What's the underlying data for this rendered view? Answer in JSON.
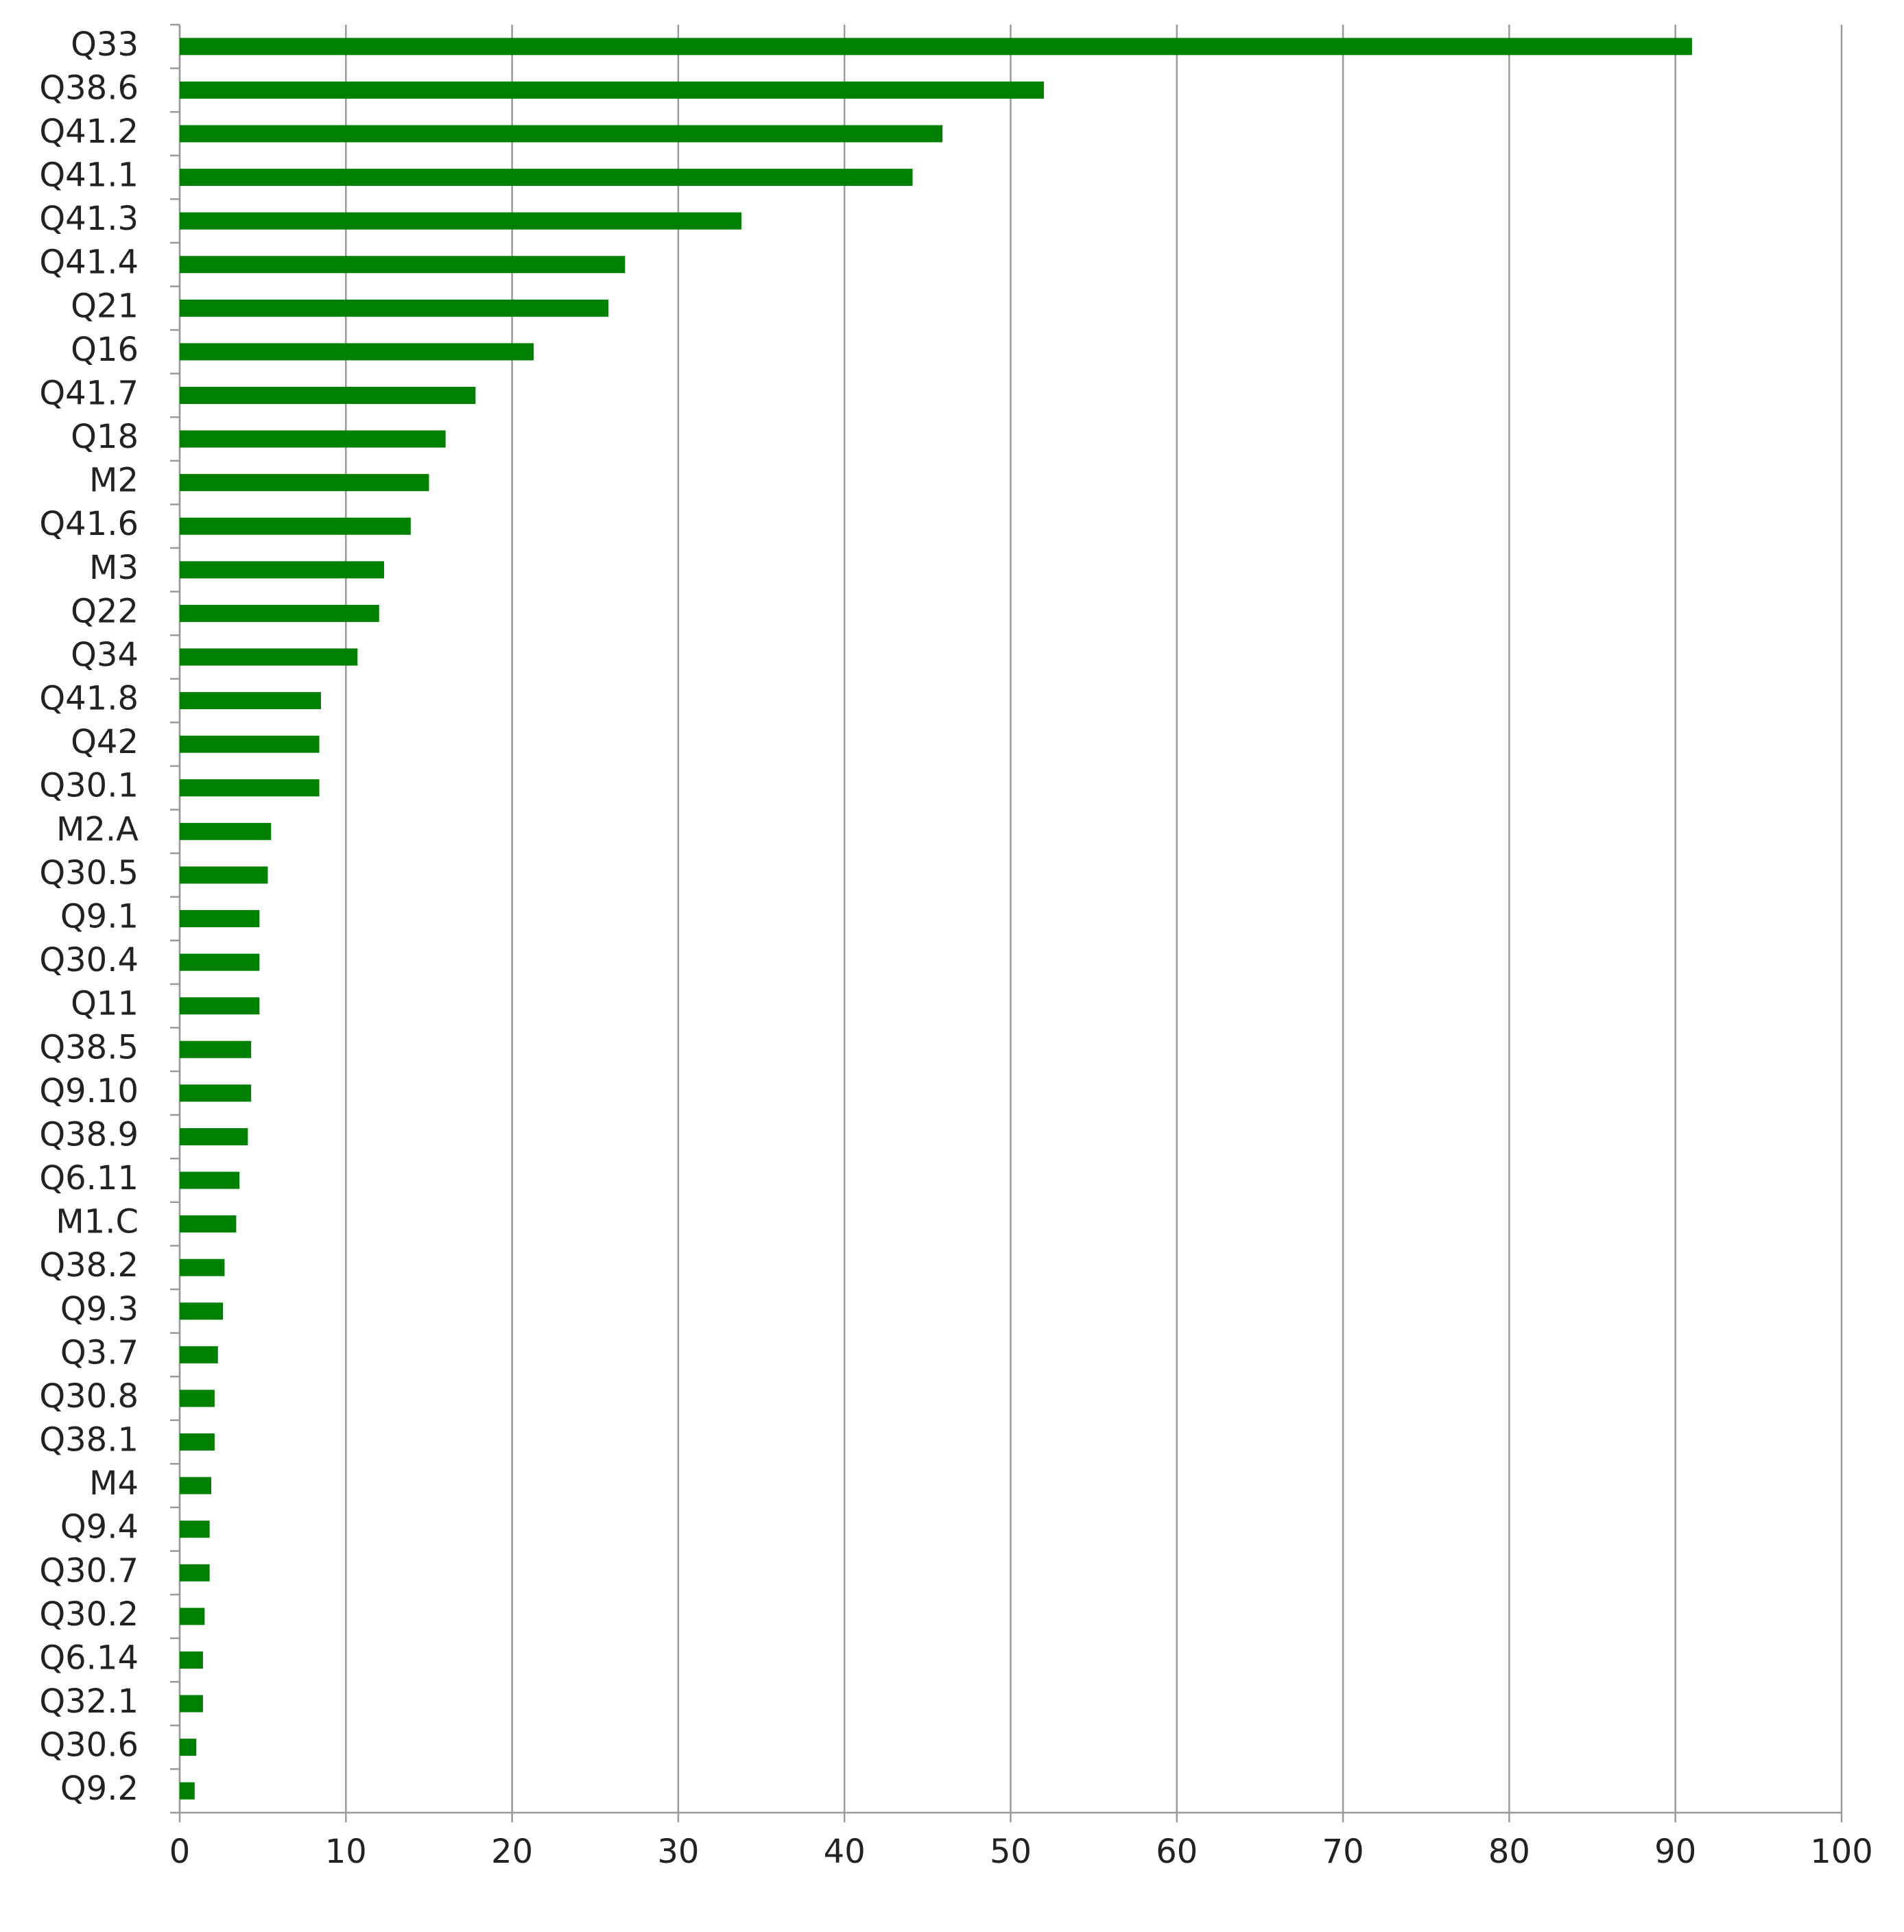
{
  "chart_data": {
    "type": "bar",
    "orientation": "horizontal",
    "categories": [
      "Q33",
      "Q38.6",
      "Q41.2",
      "Q41.1",
      "Q41.3",
      "Q41.4",
      "Q21",
      "Q16",
      "Q41.7",
      "Q18",
      "M2",
      "Q41.6",
      "M3",
      "Q22",
      "Q34",
      "Q41.8",
      "Q42",
      "Q30.1",
      "M2.A",
      "Q30.5",
      "Q9.1",
      "Q30.4",
      "Q11",
      "Q38.5",
      "Q9.10",
      "Q38.9",
      "Q6.11",
      "M1.C",
      "Q38.2",
      "Q9.3",
      "Q3.7",
      "Q30.8",
      "Q38.1",
      "M4",
      "Q9.4",
      "Q30.7",
      "Q30.2",
      "Q6.14",
      "Q32.1",
      "Q30.6",
      "Q9.2"
    ],
    "values": [
      91.0,
      52.0,
      45.9,
      44.1,
      33.8,
      26.8,
      25.8,
      21.3,
      17.8,
      16.0,
      15.0,
      13.9,
      12.3,
      12.0,
      10.7,
      8.5,
      8.4,
      8.4,
      5.5,
      5.3,
      4.8,
      4.8,
      4.8,
      4.3,
      4.3,
      4.1,
      3.6,
      3.4,
      2.7,
      2.6,
      2.3,
      2.1,
      2.1,
      1.9,
      1.8,
      1.8,
      1.5,
      1.4,
      1.4,
      1.0,
      0.9
    ],
    "color": "#008000",
    "xlim": [
      0,
      100
    ],
    "xticks": [
      0,
      10,
      20,
      30,
      40,
      50,
      60,
      70,
      80,
      90,
      100
    ],
    "grid": true
  }
}
